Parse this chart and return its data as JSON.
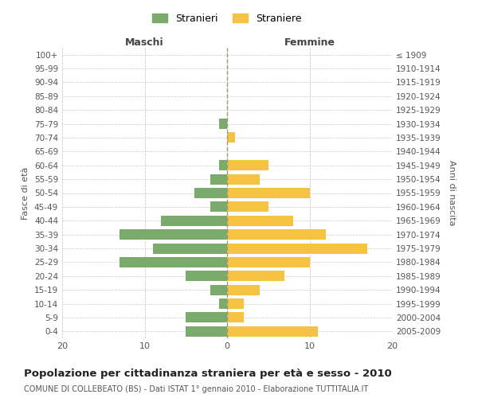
{
  "age_groups": [
    "0-4",
    "5-9",
    "10-14",
    "15-19",
    "20-24",
    "25-29",
    "30-34",
    "35-39",
    "40-44",
    "45-49",
    "50-54",
    "55-59",
    "60-64",
    "65-69",
    "70-74",
    "75-79",
    "80-84",
    "85-89",
    "90-94",
    "95-99",
    "100+"
  ],
  "birth_years": [
    "2005-2009",
    "2000-2004",
    "1995-1999",
    "1990-1994",
    "1985-1989",
    "1980-1984",
    "1975-1979",
    "1970-1974",
    "1965-1969",
    "1960-1964",
    "1955-1959",
    "1950-1954",
    "1945-1949",
    "1940-1944",
    "1935-1939",
    "1930-1934",
    "1925-1929",
    "1920-1924",
    "1915-1919",
    "1910-1914",
    "≤ 1909"
  ],
  "stranieri": [
    5,
    5,
    1,
    2,
    5,
    13,
    9,
    13,
    8,
    2,
    4,
    2,
    1,
    0,
    0,
    1,
    0,
    0,
    0,
    0,
    0
  ],
  "straniere": [
    11,
    2,
    2,
    4,
    7,
    10,
    17,
    12,
    8,
    5,
    10,
    4,
    5,
    0,
    1,
    0,
    0,
    0,
    0,
    0,
    0
  ],
  "male_color": "#7aab6d",
  "female_color": "#f5c242",
  "background_color": "#ffffff",
  "grid_color": "#cccccc",
  "title": "Popolazione per cittadinanza straniera per età e sesso - 2010",
  "subtitle": "COMUNE DI COLLEBEATO (BS) - Dati ISTAT 1° gennaio 2010 - Elaborazione TUTTITALIA.IT",
  "ylabel_left": "Fasce di età",
  "ylabel_right": "Anni di nascita",
  "xlabel_left": "Maschi",
  "xlabel_right": "Femmine",
  "legend_male": "Stranieri",
  "legend_female": "Straniere",
  "xlim": 20
}
